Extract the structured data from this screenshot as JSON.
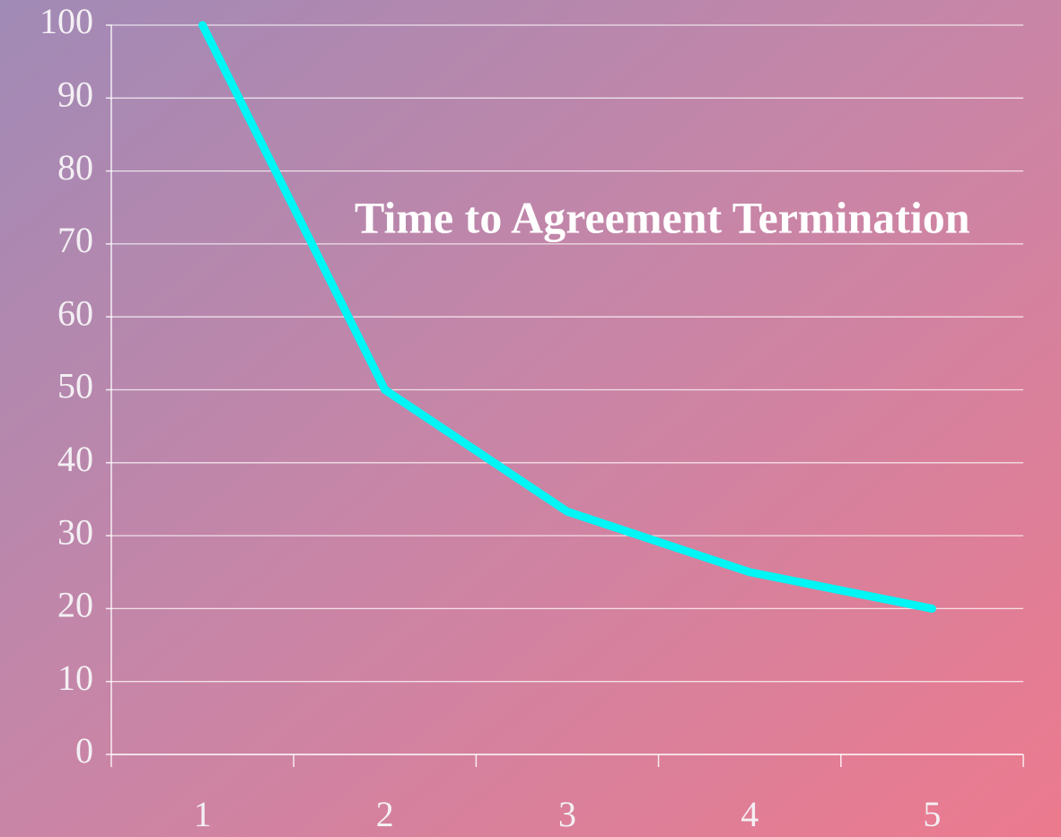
{
  "chart_data": {
    "type": "line",
    "title": "Time to Agreement Termination",
    "categories": [
      "1",
      "2",
      "3",
      "4",
      "5"
    ],
    "values": [
      100,
      50,
      33.3,
      25,
      20
    ],
    "color": "#00f5f5",
    "ylim": [
      0,
      100
    ],
    "yticks": [
      0,
      10,
      20,
      30,
      40,
      50,
      60,
      70,
      80,
      90,
      100
    ],
    "grid": true
  }
}
